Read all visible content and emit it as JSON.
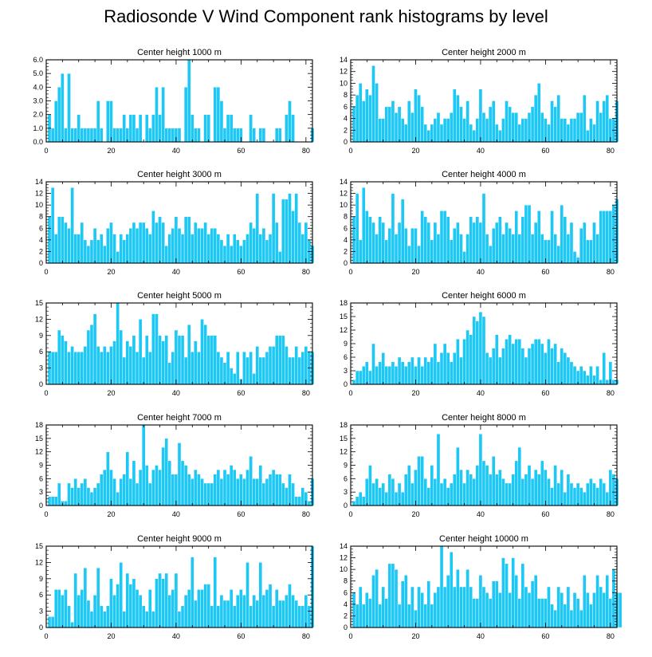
{
  "title": "Radiosonde V Wind Component rank histograms by level",
  "colors": {
    "bar": "#1ec8f5",
    "bar_edge": "#ffffff",
    "axis": "#000000"
  },
  "chart_data": [
    {
      "type": "bar",
      "title": "Center height 1000 m",
      "xlim": [
        0,
        82
      ],
      "ylim": [
        0,
        6
      ],
      "xticks": [
        0,
        20,
        40,
        60,
        80
      ],
      "yticks": [
        0,
        1,
        2,
        3,
        4,
        5,
        6
      ],
      "ytick_labels": [
        "0.0",
        "1.0",
        "2.0",
        "3.0",
        "4.0",
        "5.0",
        "6.0"
      ],
      "values": [
        2,
        1,
        3,
        4,
        5,
        1,
        5,
        1,
        1,
        2,
        1,
        1,
        1,
        1,
        1,
        3,
        1,
        0,
        3,
        3,
        1,
        1,
        1,
        2,
        1,
        2,
        2,
        1,
        2,
        0,
        2,
        1,
        2,
        4,
        2,
        4,
        1,
        1,
        1,
        1,
        1,
        0,
        4,
        6,
        2,
        1,
        1,
        0,
        2,
        2,
        0,
        4,
        4,
        3,
        1,
        2,
        2,
        1,
        1,
        1,
        0,
        0,
        2,
        1,
        0,
        1,
        1,
        0,
        0,
        0,
        1,
        1,
        0,
        2,
        3,
        2,
        0,
        0,
        0,
        0,
        0,
        1
      ]
    },
    {
      "type": "bar",
      "title": "Center height 2000 m",
      "xlim": [
        0,
        82
      ],
      "ylim": [
        0,
        14
      ],
      "xticks": [
        0,
        20,
        40,
        60,
        80
      ],
      "yticks": [
        0,
        2,
        4,
        6,
        8,
        10,
        12,
        14
      ],
      "ytick_labels": [
        "0",
        "2",
        "4",
        "6",
        "8",
        "10",
        "12",
        "14"
      ],
      "values": [
        6,
        8,
        10,
        7,
        9,
        8,
        13,
        10,
        4,
        4,
        6,
        6,
        7,
        5,
        6,
        4,
        3,
        7,
        5,
        9,
        8,
        6,
        3,
        2,
        3,
        4,
        5,
        3,
        4,
        4,
        5,
        9,
        8,
        6,
        4,
        7,
        3,
        2,
        4,
        9,
        5,
        4,
        6,
        7,
        3,
        2,
        4,
        7,
        6,
        5,
        5,
        3,
        4,
        4,
        5,
        6,
        8,
        10,
        5,
        4,
        3,
        7,
        6,
        8,
        4,
        4,
        3,
        4,
        4,
        5,
        5,
        8,
        2,
        4,
        3,
        7,
        5,
        7,
        8,
        4,
        4,
        7
      ]
    },
    {
      "type": "bar",
      "title": "Center height 3000 m",
      "xlim": [
        0,
        82
      ],
      "ylim": [
        0,
        14
      ],
      "xticks": [
        0,
        20,
        40,
        60,
        80
      ],
      "yticks": [
        0,
        2,
        4,
        6,
        8,
        10,
        12,
        14
      ],
      "ytick_labels": [
        "0",
        "2",
        "4",
        "6",
        "8",
        "10",
        "12",
        "14"
      ],
      "values": [
        8,
        13,
        5,
        8,
        8,
        7,
        6,
        13,
        5,
        5,
        7,
        4,
        3,
        4,
        6,
        4,
        5,
        3,
        6,
        7,
        5,
        2,
        5,
        4,
        5,
        6,
        7,
        6,
        7,
        7,
        6,
        5,
        9,
        7,
        8,
        7,
        3,
        5,
        6,
        8,
        6,
        5,
        8,
        8,
        5,
        7,
        6,
        6,
        7,
        5,
        6,
        6,
        5,
        4,
        3,
        5,
        3,
        5,
        4,
        3,
        4,
        5,
        7,
        6,
        12,
        5,
        6,
        4,
        5,
        12,
        7,
        2,
        11,
        11,
        12,
        9,
        12,
        7,
        5,
        7,
        4,
        3
      ]
    },
    {
      "type": "bar",
      "title": "Center height 4000 m",
      "xlim": [
        0,
        82
      ],
      "ylim": [
        0,
        14
      ],
      "xticks": [
        0,
        20,
        40,
        60,
        80
      ],
      "yticks": [
        0,
        2,
        4,
        6,
        8,
        10,
        12,
        14
      ],
      "ytick_labels": [
        "0",
        "2",
        "4",
        "6",
        "8",
        "10",
        "12",
        "14"
      ],
      "values": [
        8,
        12,
        4,
        13,
        9,
        8,
        7,
        5,
        8,
        7,
        4,
        6,
        12,
        5,
        7,
        11,
        6,
        3,
        6,
        6,
        3,
        9,
        8,
        7,
        4,
        7,
        5,
        9,
        9,
        8,
        4,
        6,
        7,
        5,
        2,
        5,
        8,
        7,
        8,
        7,
        12,
        5,
        3,
        6,
        7,
        8,
        5,
        7,
        6,
        5,
        9,
        5,
        8,
        10,
        10,
        5,
        7,
        9,
        5,
        4,
        4,
        9,
        5,
        3,
        10,
        8,
        5,
        7,
        2,
        1,
        6,
        7,
        4,
        4,
        7,
        5,
        9,
        9,
        9,
        9,
        10,
        11
      ]
    },
    {
      "type": "bar",
      "title": "Center height 5000 m",
      "xlim": [
        0,
        82
      ],
      "ylim": [
        0,
        15
      ],
      "xticks": [
        0,
        20,
        40,
        60,
        80
      ],
      "yticks": [
        0,
        3,
        6,
        9,
        12,
        15
      ],
      "ytick_labels": [
        "0",
        "3",
        "6",
        "9",
        "12",
        "15"
      ],
      "values": [
        6,
        6,
        6,
        10,
        9,
        8,
        6,
        7,
        6,
        6,
        6,
        7,
        10,
        11,
        13,
        7,
        6,
        7,
        6,
        7,
        8,
        15,
        10,
        5,
        8,
        7,
        9,
        6,
        12,
        5,
        9,
        6,
        13,
        13,
        9,
        8,
        9,
        4,
        6,
        10,
        9,
        9,
        5,
        11,
        6,
        8,
        6,
        12,
        11,
        9,
        9,
        9,
        6,
        5,
        4,
        6,
        3,
        2,
        6,
        1,
        6,
        5,
        6,
        2,
        7,
        5,
        5,
        6,
        7,
        7,
        9,
        9,
        9,
        7,
        5,
        5,
        7,
        5,
        6,
        7,
        6,
        6
      ]
    },
    {
      "type": "bar",
      "title": "Center height 6000 m",
      "xlim": [
        0,
        82
      ],
      "ylim": [
        0,
        18
      ],
      "xticks": [
        0,
        20,
        40,
        60,
        80
      ],
      "yticks": [
        0,
        3,
        6,
        9,
        12,
        15,
        18
      ],
      "ytick_labels": [
        "0",
        "3",
        "6",
        "9",
        "12",
        "15",
        "18"
      ],
      "values": [
        1,
        3,
        3,
        4,
        5,
        3,
        9,
        4,
        5,
        7,
        4,
        4,
        5,
        4,
        6,
        5,
        4,
        5,
        6,
        4,
        6,
        4,
        6,
        5,
        6,
        9,
        5,
        7,
        9,
        7,
        5,
        7,
        10,
        6,
        10,
        12,
        11,
        15,
        14,
        16,
        15,
        7,
        6,
        8,
        11,
        6,
        8,
        10,
        11,
        9,
        10,
        10,
        8,
        6,
        8,
        9,
        10,
        10,
        9,
        7,
        10,
        8,
        9,
        5,
        8,
        7,
        6,
        5,
        4,
        3,
        4,
        3,
        2,
        4,
        2,
        4,
        1,
        7,
        1,
        5,
        1,
        1
      ]
    },
    {
      "type": "bar",
      "title": "Center height 7000 m",
      "xlim": [
        0,
        82
      ],
      "ylim": [
        0,
        18
      ],
      "xticks": [
        0,
        20,
        40,
        60,
        80
      ],
      "yticks": [
        0,
        3,
        6,
        9,
        12,
        15,
        18
      ],
      "ytick_labels": [
        "0",
        "3",
        "6",
        "9",
        "12",
        "15",
        "18"
      ],
      "values": [
        2,
        2,
        2,
        5,
        1,
        1,
        5,
        4,
        6,
        4,
        5,
        6,
        4,
        3,
        4,
        5,
        7,
        8,
        12,
        8,
        6,
        3,
        6,
        7,
        12,
        6,
        10,
        5,
        8,
        18,
        9,
        5,
        8,
        9,
        8,
        13,
        15,
        10,
        7,
        7,
        14,
        10,
        9,
        7,
        6,
        8,
        7,
        6,
        5,
        5,
        5,
        7,
        8,
        6,
        8,
        7,
        9,
        8,
        6,
        7,
        6,
        8,
        11,
        6,
        6,
        9,
        5,
        6,
        7,
        8,
        7,
        7,
        5,
        4,
        7,
        5,
        2,
        2,
        4,
        3,
        1,
        6
      ]
    },
    {
      "type": "bar",
      "title": "Center height 8000 m",
      "xlim": [
        0,
        82
      ],
      "ylim": [
        0,
        18
      ],
      "xticks": [
        0,
        20,
        40,
        60,
        80
      ],
      "yticks": [
        0,
        3,
        6,
        9,
        12,
        15,
        18
      ],
      "ytick_labels": [
        "0",
        "3",
        "6",
        "9",
        "12",
        "15",
        "18"
      ],
      "values": [
        1,
        2,
        3,
        2,
        6,
        9,
        5,
        6,
        4,
        5,
        3,
        7,
        6,
        3,
        5,
        3,
        7,
        9,
        5,
        8,
        11,
        11,
        6,
        4,
        9,
        6,
        16,
        5,
        6,
        4,
        5,
        7,
        13,
        8,
        5,
        8,
        7,
        6,
        9,
        16,
        10,
        9,
        7,
        11,
        7,
        8,
        6,
        5,
        5,
        7,
        10,
        13,
        6,
        7,
        9,
        6,
        8,
        7,
        10,
        8,
        6,
        4,
        9,
        5,
        8,
        3,
        7,
        5,
        4,
        5,
        4,
        3,
        5,
        6,
        5,
        4,
        6,
        5,
        3,
        8,
        7,
        6
      ]
    },
    {
      "type": "bar",
      "title": "Center height 9000 m",
      "xlim": [
        0,
        82
      ],
      "ylim": [
        0,
        15
      ],
      "xticks": [
        0,
        20,
        40,
        60,
        80
      ],
      "yticks": [
        0,
        3,
        6,
        9,
        12,
        15
      ],
      "ytick_labels": [
        "0",
        "3",
        "6",
        "9",
        "12",
        "15"
      ],
      "values": [
        2,
        2,
        7,
        7,
        6,
        7,
        4,
        1,
        10,
        6,
        7,
        11,
        5,
        3,
        6,
        11,
        4,
        3,
        4,
        9,
        6,
        8,
        12,
        3,
        10,
        8,
        9,
        7,
        6,
        4,
        3,
        7,
        3,
        9,
        10,
        9,
        10,
        6,
        7,
        10,
        3,
        4,
        6,
        7,
        13,
        5,
        7,
        7,
        8,
        8,
        4,
        13,
        4,
        6,
        5,
        5,
        7,
        4,
        6,
        7,
        6,
        12,
        4,
        6,
        5,
        12,
        6,
        7,
        8,
        4,
        7,
        5,
        5,
        6,
        8,
        6,
        5,
        4,
        4,
        6,
        4,
        15
      ]
    },
    {
      "type": "bar",
      "title": "Center height 10000 m",
      "xlim": [
        0,
        82
      ],
      "ylim": [
        0,
        14
      ],
      "xticks": [
        0,
        20,
        40,
        60,
        80
      ],
      "yticks": [
        0,
        2,
        4,
        6,
        8,
        10,
        12,
        14
      ],
      "ytick_labels": [
        "0",
        "2",
        "4",
        "6",
        "8",
        "10",
        "12",
        "14"
      ],
      "values": [
        6,
        4,
        7,
        4,
        6,
        5,
        9,
        10,
        4,
        7,
        5,
        11,
        11,
        10,
        4,
        8,
        9,
        4,
        7,
        3,
        7,
        6,
        4,
        8,
        4,
        6,
        7,
        14,
        7,
        9,
        13,
        7,
        10,
        7,
        7,
        10,
        7,
        5,
        5,
        9,
        7,
        6,
        5,
        8,
        8,
        6,
        12,
        11,
        6,
        12,
        9,
        5,
        11,
        7,
        6,
        8,
        9,
        5,
        5,
        5,
        7,
        4,
        3,
        7,
        6,
        4,
        7,
        3,
        6,
        5,
        3,
        9,
        6,
        4,
        6,
        9,
        7,
        6,
        9,
        5,
        10,
        6,
        6
      ]
    }
  ]
}
